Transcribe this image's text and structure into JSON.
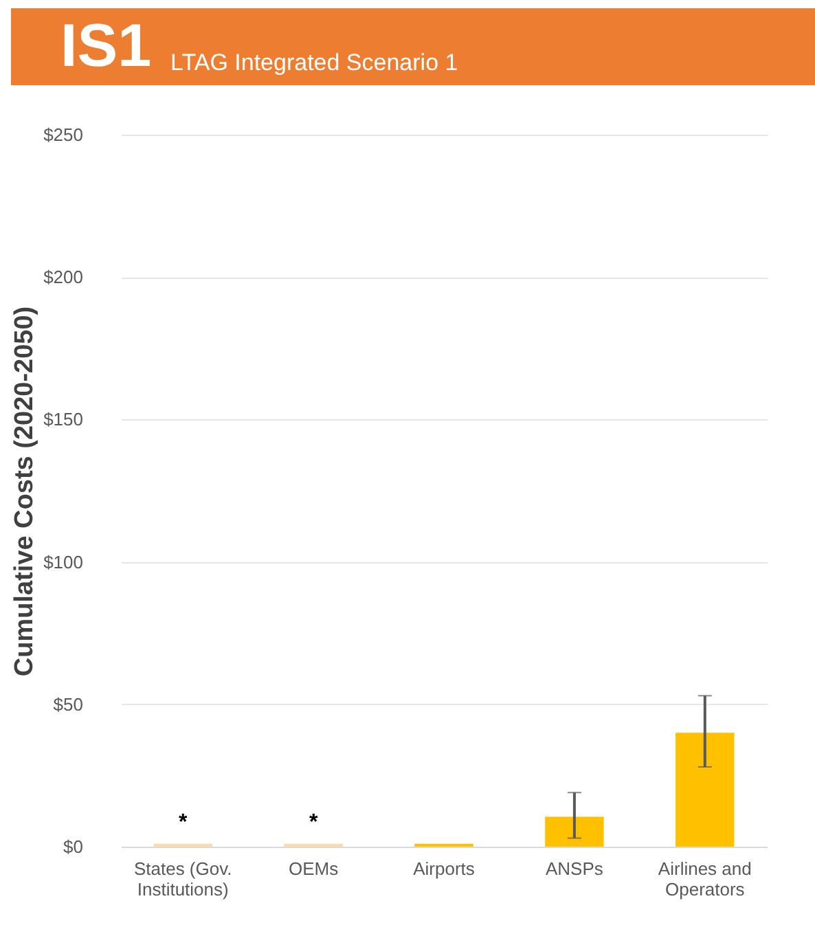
{
  "chart_data": {
    "type": "bar",
    "title": "IS1",
    "subtitle": "LTAG Integrated Scenario 1",
    "ylabel": "Cumulative Costs (2020-2050)",
    "categories": [
      "States (Gov. Institutions)",
      "OEMs",
      "Airports",
      "ANSPs",
      "Airlines and Operators"
    ],
    "values": [
      1,
      1,
      1,
      10.5,
      40
    ],
    "colors": [
      "#fbd9a8",
      "#fbd9a8",
      "#ffc000",
      "#ffc000",
      "#ffc000"
    ],
    "errors": [
      null,
      null,
      null,
      [
        3,
        19
      ],
      [
        28,
        53
      ]
    ],
    "ylim": [
      0,
      250
    ],
    "yticks": [
      {
        "value": 0,
        "label": "$0"
      },
      {
        "value": 50,
        "label": "$50"
      },
      {
        "value": 100,
        "label": "$100"
      },
      {
        "value": 150,
        "label": "$150"
      },
      {
        "value": 200,
        "label": "$200"
      },
      {
        "value": 250,
        "label": "$250"
      }
    ],
    "grid": "y",
    "annotations": [
      {
        "text": "*",
        "x": "States (Gov. Institutions)",
        "y": 1
      },
      {
        "text": "*",
        "x": "OEMs",
        "y": 1
      }
    ]
  }
}
